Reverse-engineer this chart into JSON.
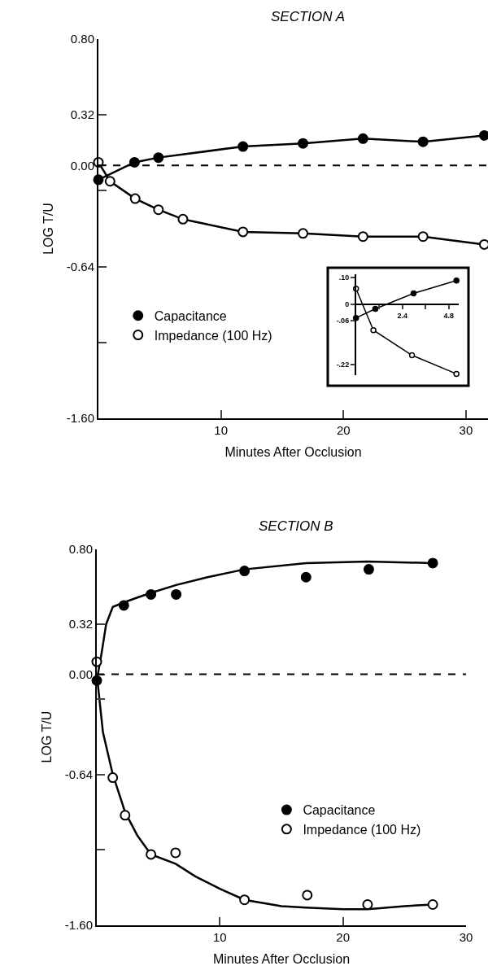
{
  "chart_data": [
    {
      "type": "line",
      "title": "SECTION A",
      "xlabel": "Minutes After Occlusion",
      "ylabel": "LOG T/U",
      "xlim": [
        0,
        31.8
      ],
      "xticks": [
        10,
        20,
        30
      ],
      "ylim": [
        -1.6,
        0.8
      ],
      "yticks": [
        {
          "value": 0.8,
          "label": "0.80"
        },
        {
          "value": 0.32,
          "label": "0.32"
        },
        {
          "value": 0,
          "label": "0.00"
        },
        {
          "value": -0.16,
          "label": null
        },
        {
          "value": -0.64,
          "label": "-0.64"
        },
        {
          "value": -1.12,
          "label": null
        },
        {
          "value": -1.6,
          "label": "-1.60"
        }
      ],
      "legend": "bottom left",
      "marker": "circle",
      "ref_lines": [
        {
          "axis": "y",
          "value": 0,
          "color": "#000000",
          "line_style": "dashed"
        }
      ],
      "series": [
        {
          "type": "line",
          "color": "#000000",
          "marker": "none",
          "x": [
            0,
            2.95,
            4.9,
            11.8,
            16.7,
            21.6,
            26.5,
            31.5
          ],
          "values": [
            -0.09,
            0.02,
            0.05,
            0.12,
            0.14,
            0.17,
            0.15,
            0.19
          ]
        },
        {
          "type": "line",
          "color": "#000000",
          "marker": "none",
          "x": [
            0,
            0.95,
            3.0,
            4.9,
            6.9,
            11.8,
            16.7,
            21.6,
            26.5,
            31.5
          ],
          "values": [
            0.02,
            -0.1,
            -0.21,
            -0.28,
            -0.34,
            -0.42,
            -0.43,
            -0.45,
            -0.45,
            -0.5
          ]
        },
        {
          "type": "scatter",
          "name": "Capacitance",
          "color": "#000000",
          "x": [
            0,
            2.95,
            4.9,
            11.8,
            16.7,
            21.6,
            26.5,
            31.5
          ],
          "values": [
            -0.09,
            0.02,
            0.05,
            0.12,
            0.14,
            0.17,
            0.15,
            0.19
          ]
        },
        {
          "type": "scatter",
          "name": "Impedance (100 Hz)",
          "color": "#ffffff",
          "x": [
            0,
            0.95,
            3.0,
            4.9,
            6.9,
            11.8,
            16.7,
            21.6,
            26.5,
            31.5
          ],
          "values": [
            0.02,
            -0.1,
            -0.21,
            -0.28,
            -0.34,
            -0.42,
            -0.43,
            -0.45,
            -0.45,
            -0.5
          ]
        }
      ]
    },
    {
      "type": "line",
      "xlim": [
        0,
        5.3
      ],
      "xticks": [
        {
          "value": 1.2,
          "label": null
        },
        2.4,
        {
          "value": 3.6,
          "label": null
        },
        4.8
      ],
      "ylim": [
        -0.26,
        0.11
      ],
      "yticks": [
        {
          "value": 0.1,
          "label": ".10"
        },
        0,
        {
          "value": -0.06,
          "label": "-.06"
        },
        {
          "value": -0.22,
          "label": "-.22"
        }
      ],
      "marker": "circle",
      "series": [
        {
          "color": "#000000",
          "x": [
            0,
            1.0,
            2.98,
            5.2
          ],
          "values": [
            -0.049,
            -0.016,
            0.041,
            0.088
          ]
        },
        {
          "color": "#ffffff",
          "x": [
            0,
            0.9,
            2.9,
            5.2
          ],
          "values": [
            0.058,
            -0.094,
            -0.186,
            -0.254
          ]
        }
      ]
    },
    {
      "type": "line",
      "title": "SECTION B",
      "xlabel": "Minutes After Occlusion",
      "ylabel": "LOG T/U",
      "xlim": [
        0,
        30
      ],
      "xticks": [
        10,
        20,
        30
      ],
      "ylim": [
        -1.6,
        0.8
      ],
      "yticks": [
        {
          "value": 0.8,
          "label": "0.80"
        },
        {
          "value": 0.32,
          "label": "0.32"
        },
        {
          "value": 0,
          "label": "0.00"
        },
        {
          "value": -0.16,
          "label": null
        },
        {
          "value": -0.64,
          "label": "-0.64"
        },
        {
          "value": -1.12,
          "label": null
        },
        {
          "value": -1.6,
          "label": "-1.60"
        }
      ],
      "legend": "bottom right",
      "marker": "circle",
      "ref_lines": [
        {
          "axis": "y",
          "value": 0,
          "color": "#000000",
          "line_style": "dashed"
        }
      ],
      "series": [
        {
          "type": "line",
          "color": "#000000",
          "marker": "none",
          "x": [
            0,
            0.4,
            0.76,
            1.3,
            2.25,
            3.3,
            4.4,
            6.45,
            9,
            12,
            17,
            22,
            27.3
          ],
          "values": [
            -0.04,
            0.14,
            0.32,
            0.43,
            0.46,
            0.49,
            0.52,
            0.57,
            0.62,
            0.67,
            0.71,
            0.72,
            0.71
          ]
        },
        {
          "type": "line",
          "color": "#000000",
          "marker": "none",
          "x": [
            0,
            0.5,
            1.3,
            2.3,
            3.3,
            4.4,
            6.4,
            8,
            10,
            12,
            15,
            17,
            20,
            22,
            25,
            27.3
          ],
          "values": [
            0.0,
            -0.37,
            -0.64,
            -0.88,
            -1.03,
            -1.15,
            -1.21,
            -1.29,
            -1.37,
            -1.44,
            -1.48,
            -1.49,
            -1.5,
            -1.5,
            -1.48,
            -1.47
          ]
        },
        {
          "type": "scatter",
          "name": "Capacitance",
          "color": "#000000",
          "x": [
            0,
            2.2,
            4.4,
            6.45,
            12.0,
            17.0,
            22.1,
            27.3
          ],
          "values": [
            -0.04,
            0.44,
            0.51,
            0.51,
            0.66,
            0.62,
            0.67,
            0.71
          ]
        },
        {
          "type": "scatter",
          "name": "Impedance (100 Hz)",
          "color": "#ffffff",
          "x": [
            0,
            1.3,
            2.3,
            4.4,
            6.4,
            12.0,
            17.1,
            22.0,
            27.3
          ],
          "values": [
            0.08,
            -0.66,
            -0.9,
            -1.15,
            -1.14,
            -1.44,
            -1.41,
            -1.47,
            -1.47
          ]
        }
      ]
    }
  ]
}
